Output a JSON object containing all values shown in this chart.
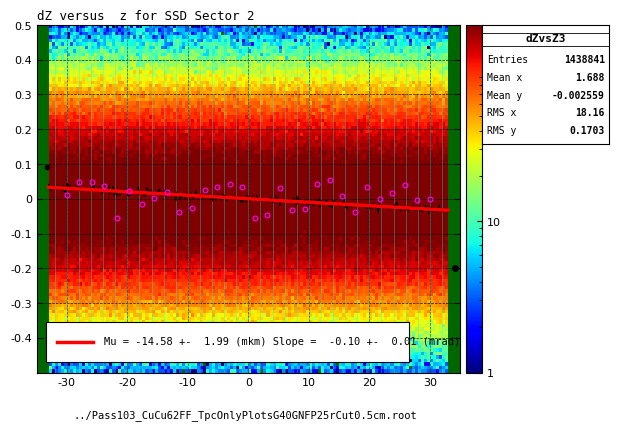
{
  "title": "dZ versus  z for SSD Sector 2",
  "xlabel": "../Pass103_CuCu62FF_TpcOnlyPlotsG40GNFP25rCut0.5cm.root",
  "xlim": [
    -35,
    35
  ],
  "ylim": [
    -0.5,
    0.5
  ],
  "xticks": [
    -30,
    -20,
    -10,
    0,
    10,
    20,
    30
  ],
  "yticks": [
    -0.4,
    -0.3,
    -0.2,
    -0.1,
    0.0,
    0.1,
    0.2,
    0.3,
    0.4,
    0.5
  ],
  "stats_title": "dZvsZ3",
  "stats": [
    [
      "Entries",
      "1438841"
    ],
    [
      "Mean x",
      "1.688"
    ],
    [
      "Mean y",
      "-0.002559"
    ],
    [
      "RMS x",
      "18.16"
    ],
    [
      "RMS y",
      "0.1703"
    ]
  ],
  "legend_text": "Mu = -14.58 +-  1.99 (mkm) Slope =  -0.10 +-  0.01 (mrad)",
  "fit_slope": -0.001,
  "fit_intercept": 0.0,
  "background_color": "#ffffff",
  "plot_bg_color": "#006600",
  "colormap": "jet",
  "seed": 42,
  "profile_seed": 10
}
